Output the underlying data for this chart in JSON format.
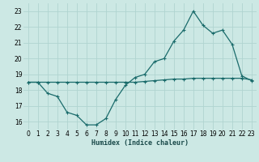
{
  "xlabel": "Humidex (Indice chaleur)",
  "background_color": "#cce8e4",
  "grid_color": "#b0d4d0",
  "line_color": "#1a6b6b",
  "xlim": [
    -0.5,
    23.5
  ],
  "ylim": [
    15.5,
    23.5
  ],
  "yticks": [
    16,
    17,
    18,
    19,
    20,
    21,
    22,
    23
  ],
  "xticks": [
    0,
    1,
    2,
    3,
    4,
    5,
    6,
    7,
    8,
    9,
    10,
    11,
    12,
    13,
    14,
    15,
    16,
    17,
    18,
    19,
    20,
    21,
    22,
    23
  ],
  "line1_x": [
    0,
    1,
    2,
    3,
    4,
    5,
    6,
    7,
    8,
    9,
    10,
    11,
    12,
    13,
    14,
    15,
    16,
    17,
    18,
    19,
    20,
    21,
    22,
    23
  ],
  "line1_y": [
    18.5,
    18.5,
    17.8,
    17.6,
    16.6,
    16.4,
    15.8,
    15.8,
    16.2,
    17.4,
    18.3,
    18.8,
    19.0,
    19.8,
    20.0,
    21.1,
    21.8,
    23.0,
    22.1,
    21.6,
    21.8,
    20.9,
    18.9,
    18.6
  ],
  "line2_x": [
    0,
    1,
    2,
    3,
    4,
    5,
    6,
    7,
    8,
    9,
    10,
    11,
    12,
    13,
    14,
    15,
    16,
    17,
    18,
    19,
    20,
    21,
    22,
    23
  ],
  "line2_y": [
    18.5,
    18.5,
    18.5,
    18.5,
    18.5,
    18.5,
    18.5,
    18.5,
    18.5,
    18.5,
    18.5,
    18.5,
    18.55,
    18.6,
    18.65,
    18.7,
    18.7,
    18.75,
    18.75,
    18.75,
    18.75,
    18.75,
    18.75,
    18.65
  ],
  "xlabel_fontsize": 6.0,
  "tick_fontsize": 5.5
}
